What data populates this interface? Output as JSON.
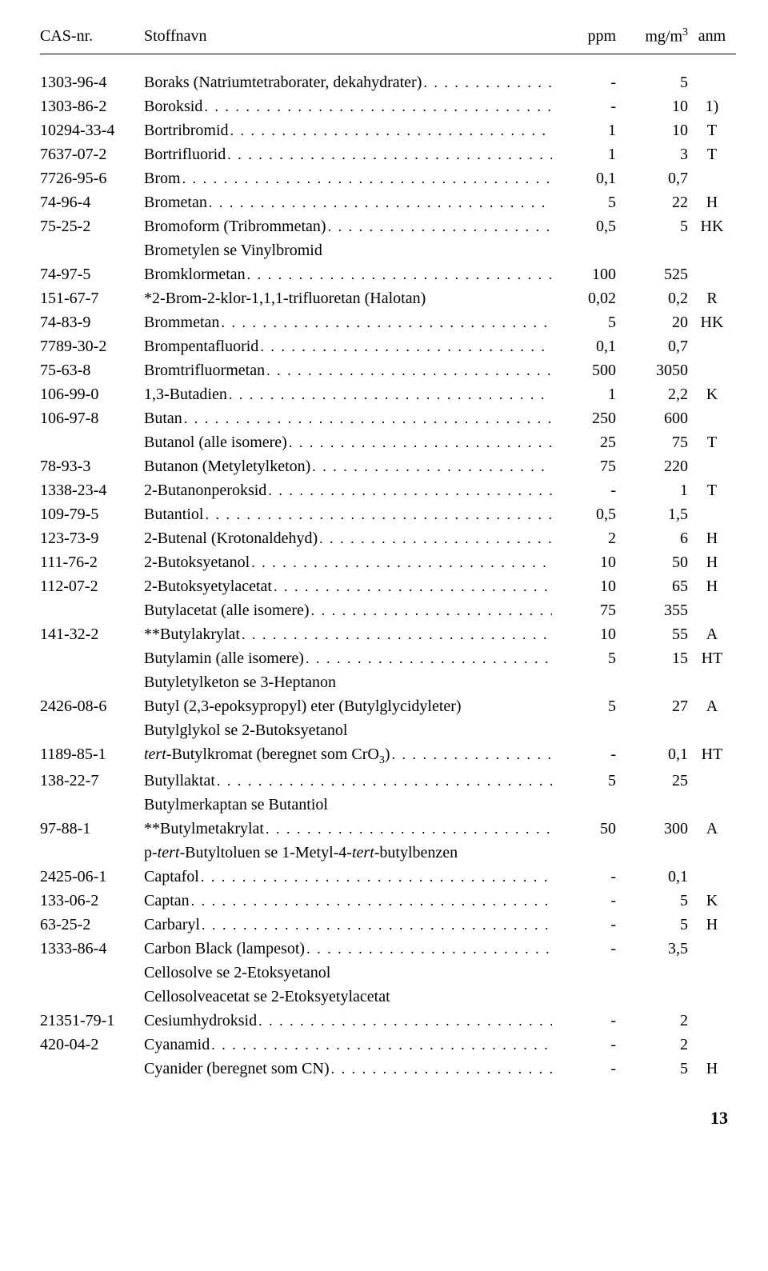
{
  "headers": {
    "cas": "CAS-nr.",
    "name": "Stoffnavn",
    "ppm": "ppm",
    "mgm": "mg/m³",
    "anm": "anm"
  },
  "rows": [
    {
      "cas": "1303-96-4",
      "name": "Boraks (Natriumtetraborater, dekahydrater)",
      "dots": true,
      "ppm": "-",
      "mgm": "5",
      "anm": ""
    },
    {
      "cas": "1303-86-2",
      "name": "Boroksid",
      "dots": true,
      "ppm": "-",
      "mgm": "10",
      "anm": "1)"
    },
    {
      "cas": "10294-33-4",
      "name": "Bortribromid",
      "dots": true,
      "ppm": "1",
      "mgm": "10",
      "anm": "T"
    },
    {
      "cas": "7637-07-2",
      "name": "Bortrifluorid",
      "dots": true,
      "ppm": "1",
      "mgm": "3",
      "anm": "T"
    },
    {
      "cas": "7726-95-6",
      "name": "Brom",
      "dots": true,
      "ppm": "0,1",
      "mgm": "0,7",
      "anm": ""
    },
    {
      "cas": "74-96-4",
      "name": "Brometan",
      "dots": true,
      "ppm": "5",
      "mgm": "22",
      "anm": "H"
    },
    {
      "cas": "75-25-2",
      "name": "Bromoform (Tribrommetan)",
      "dots": true,
      "ppm": "0,5",
      "mgm": "5",
      "anm": "HK"
    },
    {
      "cas": "",
      "name": "Brometylen se Vinylbromid",
      "dots": false,
      "ppm": "",
      "mgm": "",
      "anm": ""
    },
    {
      "cas": "74-97-5",
      "name": "Bromklormetan",
      "dots": true,
      "ppm": "100",
      "mgm": "525",
      "anm": ""
    },
    {
      "cas": "151-67-7",
      "name": "*2-Brom-2-klor-1,1,1-trifluoretan (Halotan)",
      "dots": false,
      "ppm": "0,02",
      "mgm": "0,2",
      "anm": "R"
    },
    {
      "cas": "74-83-9",
      "name": "Brommetan",
      "dots": true,
      "ppm": "5",
      "mgm": "20",
      "anm": "HK"
    },
    {
      "cas": "7789-30-2",
      "name": "Brompentafluorid",
      "dots": true,
      "ppm": "0,1",
      "mgm": "0,7",
      "anm": ""
    },
    {
      "cas": "75-63-8",
      "name": "Bromtrifluormetan",
      "dots": true,
      "ppm": "500",
      "mgm": "3050",
      "anm": ""
    },
    {
      "cas": "106-99-0",
      "name": "1,3-Butadien",
      "dots": true,
      "ppm": "1",
      "mgm": "2,2",
      "anm": "K"
    },
    {
      "cas": "106-97-8",
      "name": "Butan",
      "dots": true,
      "ppm": "250",
      "mgm": "600",
      "anm": ""
    },
    {
      "cas": "",
      "name": "Butanol (alle isomere)",
      "dots": true,
      "ppm": "25",
      "mgm": "75",
      "anm": "T"
    },
    {
      "cas": "78-93-3",
      "name": "Butanon (Metyletylketon)",
      "dots": true,
      "ppm": "75",
      "mgm": "220",
      "anm": ""
    },
    {
      "cas": "1338-23-4",
      "name": "2-Butanonperoksid",
      "dots": true,
      "ppm": "-",
      "mgm": "1",
      "anm": "T"
    },
    {
      "cas": "109-79-5",
      "name": "Butantiol",
      "dots": true,
      "ppm": "0,5",
      "mgm": "1,5",
      "anm": ""
    },
    {
      "cas": "123-73-9",
      "name": "2-Butenal (Krotonaldehyd)",
      "dots": true,
      "ppm": "2",
      "mgm": "6",
      "anm": "H"
    },
    {
      "cas": "111-76-2",
      "name": "2-Butoksyetanol",
      "dots": true,
      "ppm": "10",
      "mgm": "50",
      "anm": "H"
    },
    {
      "cas": "112-07-2",
      "name": "2-Butoksyetylacetat",
      "dots": true,
      "ppm": "10",
      "mgm": "65",
      "anm": "H"
    },
    {
      "cas": "",
      "name": "Butylacetat (alle isomere)",
      "dots": true,
      "ppm": "75",
      "mgm": "355",
      "anm": ""
    },
    {
      "cas": "141-32-2",
      "name": "**Butylakrylat",
      "dots": true,
      "ppm": "10",
      "mgm": "55",
      "anm": "A"
    },
    {
      "cas": "",
      "name": "Butylamin (alle isomere)",
      "dots": true,
      "ppm": "5",
      "mgm": "15",
      "anm": "HT"
    },
    {
      "cas": "",
      "name": "Butyletylketon se 3-Heptanon",
      "dots": false,
      "ppm": "",
      "mgm": "",
      "anm": ""
    },
    {
      "cas": "2426-08-6",
      "name": "Butyl (2,3-epoksypropyl) eter (Butylglycidyleter)",
      "dots": false,
      "ppm": "5",
      "mgm": "27",
      "anm": "A"
    },
    {
      "cas": "",
      "name": "Butylglykol se 2-Butoksyetanol",
      "dots": false,
      "ppm": "",
      "mgm": "",
      "anm": ""
    },
    {
      "cas": "1189-85-1",
      "html": "<span class=\"italic-prefix\">tert</span>-Butylkromat (beregnet som CrO<sub>3</sub>)",
      "dots": true,
      "ppm": "-",
      "mgm": "0,1",
      "anm": "HT"
    },
    {
      "cas": "138-22-7",
      "name": "Butyllaktat",
      "dots": true,
      "ppm": "5",
      "mgm": "25",
      "anm": ""
    },
    {
      "cas": "",
      "name": "Butylmerkaptan se Butantiol",
      "dots": false,
      "ppm": "",
      "mgm": "",
      "anm": ""
    },
    {
      "cas": "97-88-1",
      "name": "**Butylmetakrylat",
      "dots": true,
      "ppm": "50",
      "mgm": "300",
      "anm": "A"
    },
    {
      "cas": "",
      "html": "p-<span class=\"italic-prefix\">tert</span>-Butyltoluen se 1-Metyl-4-<span class=\"italic-prefix\">tert</span>-butylbenzen",
      "dots": false,
      "ppm": "",
      "mgm": "",
      "anm": ""
    },
    {
      "cas": "2425-06-1",
      "name": "Captafol",
      "dots": true,
      "ppm": "-",
      "mgm": "0,1",
      "anm": ""
    },
    {
      "cas": "133-06-2",
      "name": "Captan",
      "dots": true,
      "ppm": "-",
      "mgm": "5",
      "anm": "K"
    },
    {
      "cas": "63-25-2",
      "name": "Carbaryl",
      "dots": true,
      "ppm": "-",
      "mgm": "5",
      "anm": "H"
    },
    {
      "cas": "1333-86-4",
      "name": "Carbon Black (lampesot)",
      "dots": true,
      "ppm": "-",
      "mgm": "3,5",
      "anm": ""
    },
    {
      "cas": "",
      "name": "Cellosolve se 2-Etoksyetanol",
      "dots": false,
      "ppm": "",
      "mgm": "",
      "anm": ""
    },
    {
      "cas": "",
      "name": "Cellosolveacetat se 2-Etoksyetylacetat",
      "dots": false,
      "ppm": "",
      "mgm": "",
      "anm": ""
    },
    {
      "cas": "21351-79-1",
      "name": "Cesiumhydroksid",
      "dots": true,
      "ppm": "-",
      "mgm": "2",
      "anm": ""
    },
    {
      "cas": "420-04-2",
      "name": "Cyanamid",
      "dots": true,
      "ppm": "-",
      "mgm": "2",
      "anm": ""
    },
    {
      "cas": "",
      "name": "Cyanider (beregnet som CN)",
      "dots": true,
      "ppm": "-",
      "mgm": "5",
      "anm": "H"
    }
  ],
  "page_number": "13",
  "dot_fill": ". . . . . . . . . . . . . . . . . . . . . . . . . . . . . . . . . . . . . . . . . . . . . . . . . ."
}
